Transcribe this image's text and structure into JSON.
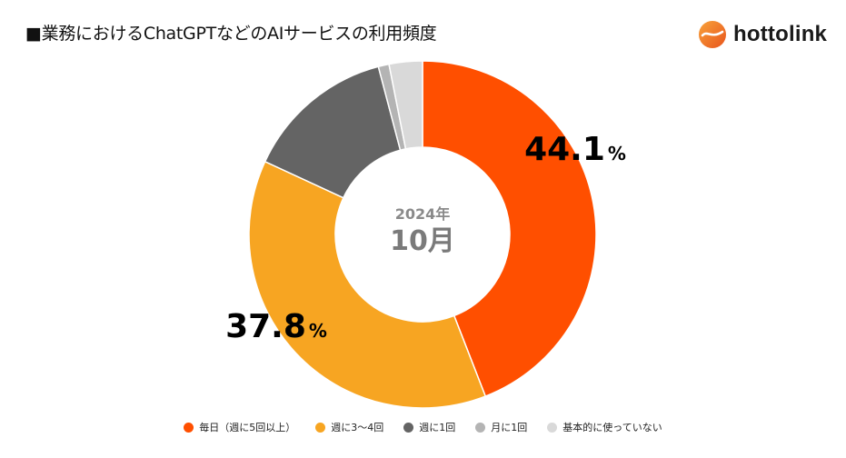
{
  "title": "■業務におけるChatGPTなどのAIサービスの利用頻度",
  "brand": {
    "name": "hottolink",
    "color": "#f07d22"
  },
  "center": {
    "year": "2024年",
    "month": "10月"
  },
  "chart_data": {
    "type": "pie",
    "variant": "donut",
    "title": "■業務におけるChatGPTなどのAIサービスの利用頻度",
    "slices": [
      {
        "name": "毎日（週に5回以上）",
        "value": 44.1,
        "label": "44.1",
        "unit": "%",
        "color": "#ff4f00",
        "label_position": "upper-right"
      },
      {
        "name": "週に3～4回",
        "value": 37.8,
        "label": "37.8",
        "unit": "%",
        "color": "#f7a522",
        "label_position": "lower-left"
      },
      {
        "name": "週に1回",
        "value": 14.0,
        "label": null,
        "unit": "%",
        "color": "#646464",
        "label_position": null
      },
      {
        "name": "月に1回",
        "value": 1.0,
        "label": null,
        "unit": "%",
        "color": "#b4b4b4",
        "label_position": null
      },
      {
        "name": "基本的に使っていない",
        "value": 3.1,
        "label": null,
        "unit": "%",
        "color": "#d9d9d9",
        "label_position": null
      }
    ],
    "start": "12 o'clock",
    "direction": "clockwise",
    "legend_position": "bottom"
  }
}
